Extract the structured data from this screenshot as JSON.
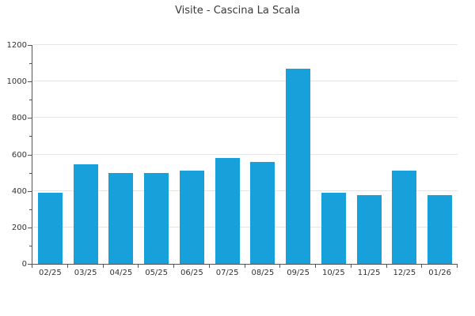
{
  "title": "Visite - Cascina La Scala",
  "colors": {
    "bar": "#18a0da",
    "axis": "#555555",
    "grid": "#e5e5e5",
    "tick_text": "#333333",
    "title_text": "#3a3a3a",
    "background": "#ffffff"
  },
  "chart_data": {
    "type": "bar",
    "title": "Visite - Cascina La Scala",
    "categories": [
      "02/25",
      "03/25",
      "04/25",
      "05/25",
      "06/25",
      "07/25",
      "08/25",
      "09/25",
      "10/25",
      "11/25",
      "12/25",
      "01/26"
    ],
    "values": [
      390,
      545,
      500,
      500,
      510,
      580,
      560,
      1070,
      390,
      375,
      510,
      375
    ],
    "xlabel": "",
    "ylabel": "",
    "ylim": [
      0,
      1200
    ],
    "yticks": [
      0,
      200,
      400,
      600,
      800,
      1000,
      1200
    ],
    "y_minor_step": 100,
    "grid": true,
    "legend": false
  }
}
